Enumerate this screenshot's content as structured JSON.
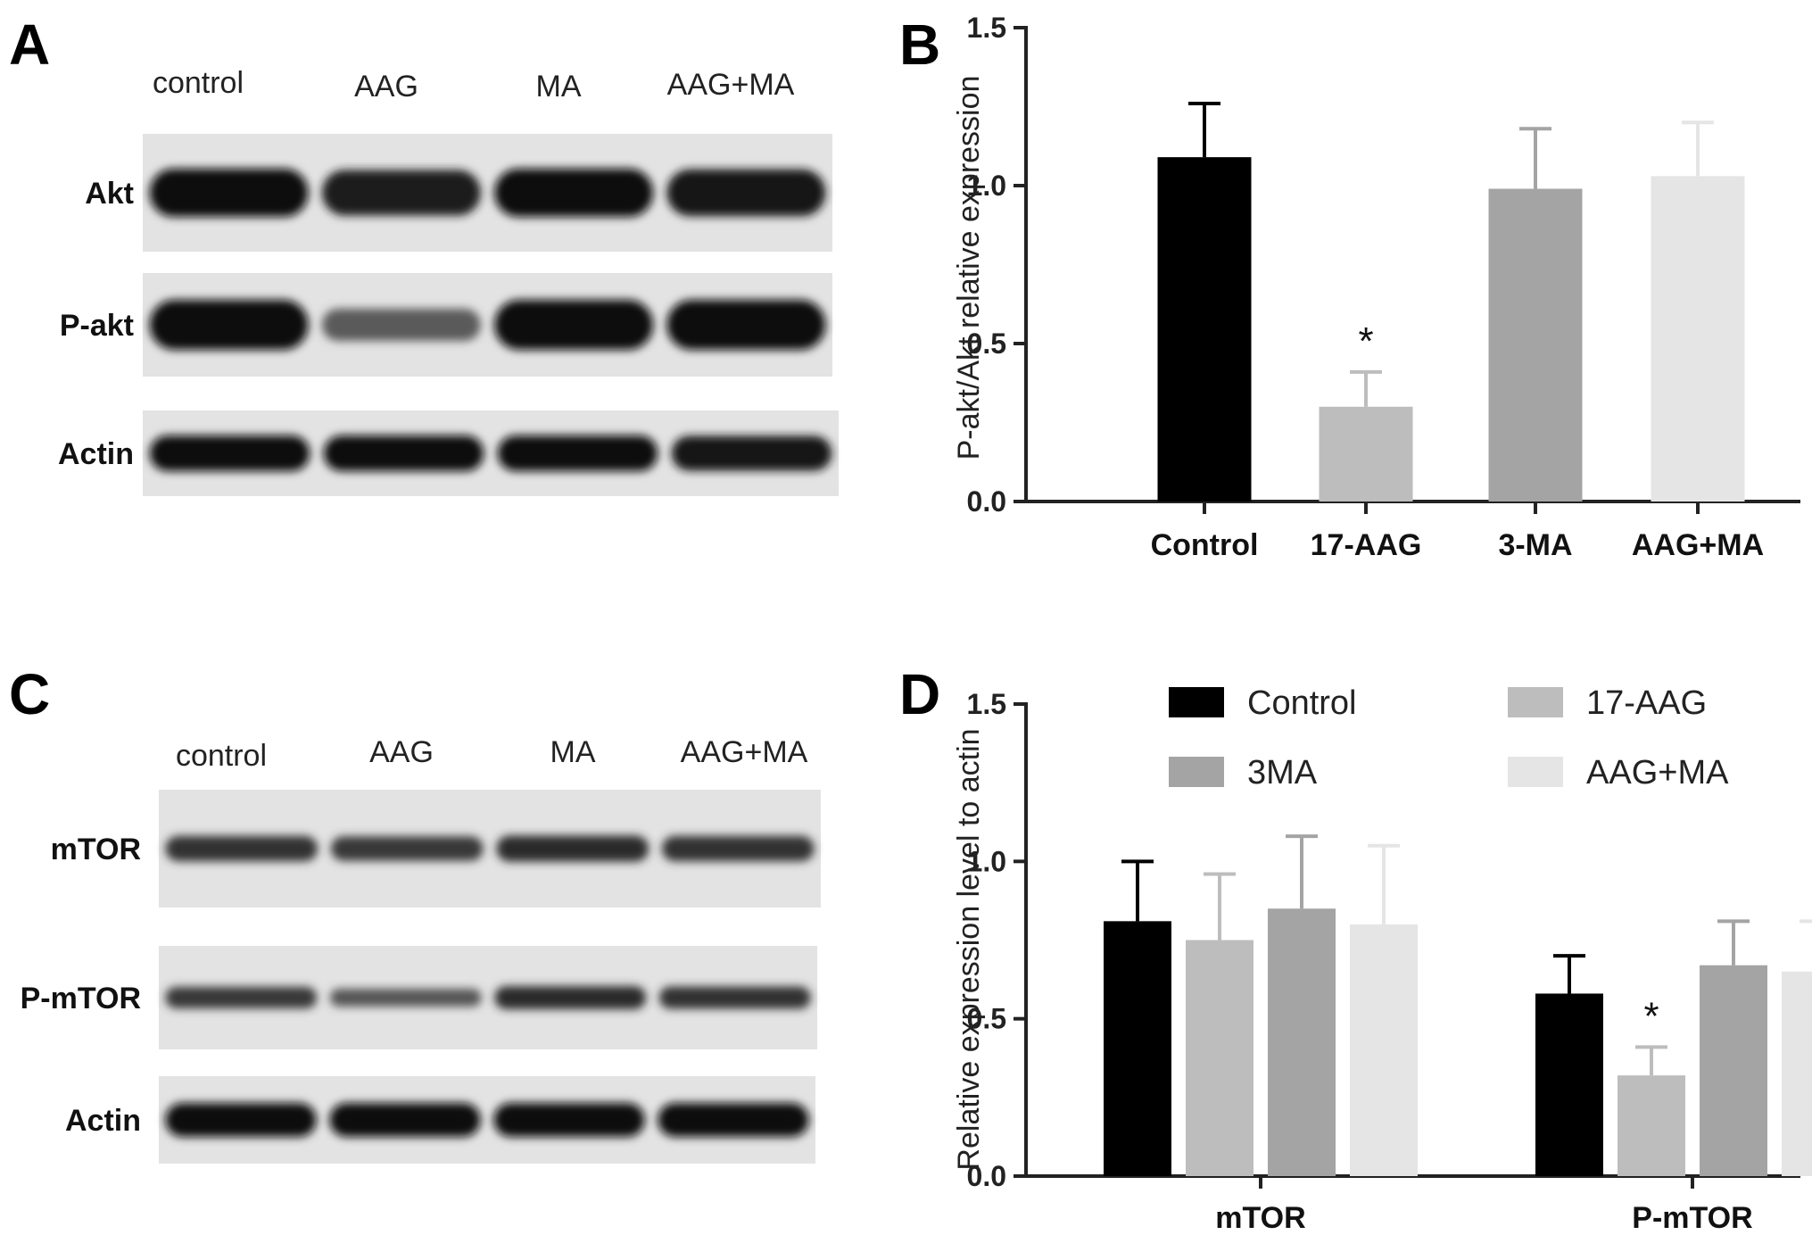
{
  "panels": {
    "A": {
      "letter": "A",
      "lanes": [
        "control",
        "AAG",
        "MA",
        "AAG+MA"
      ],
      "rows": [
        {
          "label": "Akt",
          "intensity": [
            1.0,
            0.9,
            1.0,
            0.95
          ]
        },
        {
          "label": "P-akt",
          "intensity": [
            1.0,
            0.35,
            1.0,
            1.0
          ]
        },
        {
          "label": "Actin",
          "intensity": [
            1.0,
            1.0,
            1.0,
            0.95
          ]
        }
      ]
    },
    "C": {
      "letter": "C",
      "lanes": [
        "control",
        "AAG",
        "MA",
        "AAG+MA"
      ],
      "rows": [
        {
          "label": "mTOR",
          "intensity": [
            0.7,
            0.65,
            0.75,
            0.7
          ]
        },
        {
          "label": "P-mTOR",
          "intensity": [
            0.65,
            0.4,
            0.75,
            0.7
          ]
        },
        {
          "label": "Actin",
          "intensity": [
            1.0,
            1.0,
            1.0,
            1.0
          ]
        }
      ]
    }
  },
  "chart_data": [
    {
      "panel": "B",
      "type": "bar",
      "categories": [
        "Control",
        "17-AAG",
        "3-MA",
        "AAG+MA"
      ],
      "values": [
        1.09,
        0.3,
        0.99,
        1.03
      ],
      "errors": [
        0.17,
        0.11,
        0.19,
        0.17
      ],
      "significance": [
        "",
        "*",
        "",
        ""
      ],
      "colors": [
        "#000000",
        "#bdbdbd",
        "#a4a4a4",
        "#e5e5e5"
      ],
      "ylabel": "P-akt/Akt relative expression",
      "ylim": [
        0,
        1.5
      ],
      "yticks": [
        "0.0",
        "0.5",
        "1.0",
        "1.5"
      ],
      "grid": false
    },
    {
      "panel": "D",
      "type": "bar",
      "categories": [
        "mTOR",
        "P-mTOR"
      ],
      "series": [
        {
          "name": "Control",
          "values": [
            0.81,
            0.58
          ],
          "errors": [
            0.19,
            0.12
          ],
          "color": "#000000",
          "significance": [
            "",
            ""
          ]
        },
        {
          "name": "17-AAG",
          "values": [
            0.75,
            0.32
          ],
          "errors": [
            0.21,
            0.09
          ],
          "color": "#bdbdbd",
          "significance": [
            "",
            "*"
          ]
        },
        {
          "name": "3MA",
          "values": [
            0.85,
            0.67
          ],
          "errors": [
            0.23,
            0.14
          ],
          "color": "#a4a4a4",
          "significance": [
            "",
            ""
          ]
        },
        {
          "name": "AAG+MA",
          "values": [
            0.8,
            0.65
          ],
          "errors": [
            0.25,
            0.16
          ],
          "color": "#e5e5e5",
          "significance": [
            "",
            ""
          ]
        }
      ],
      "ylabel": "Relative expression level to actin",
      "ylim": [
        0,
        1.5
      ],
      "yticks": [
        "0.0",
        "0.5",
        "1.0",
        "1.5"
      ],
      "legend": "top",
      "grid": false
    }
  ]
}
